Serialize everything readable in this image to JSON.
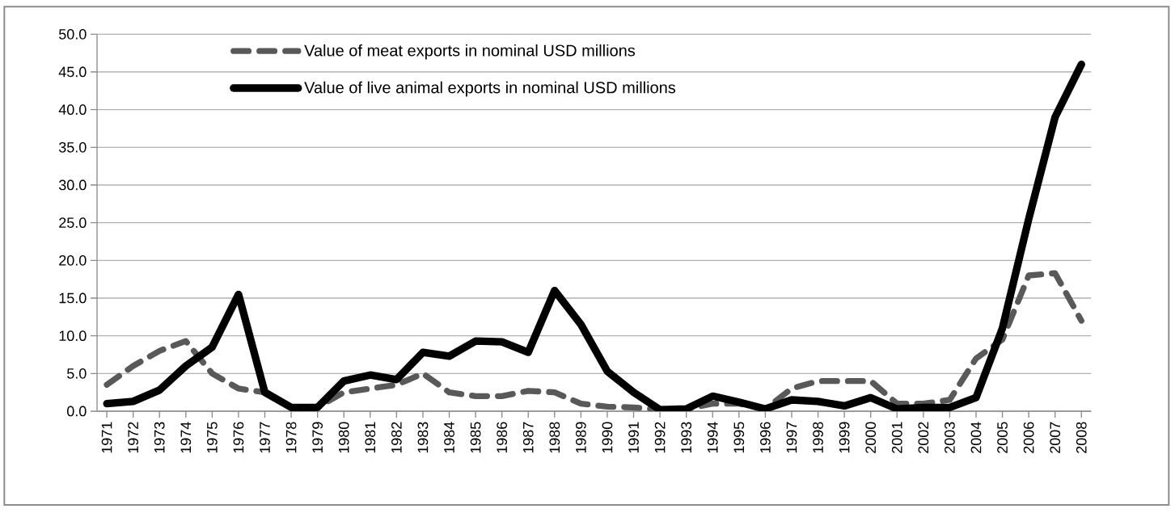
{
  "chart_data": {
    "type": "line",
    "categories": [
      "1971",
      "1972",
      "1973",
      "1974",
      "1975",
      "1976",
      "1977",
      "1978",
      "1979",
      "1980",
      "1981",
      "1982",
      "1983",
      "1984",
      "1985",
      "1986",
      "1987",
      "1988",
      "1989",
      "1990",
      "1991",
      "1992",
      "1993",
      "1994",
      "1995",
      "1996",
      "1997",
      "1998",
      "1999",
      "2000",
      "2001",
      "2002",
      "2003",
      "2004",
      "2005",
      "2006",
      "2007",
      "2008"
    ],
    "series": [
      {
        "name": "Value of meat exports in nominal USD millions",
        "color": "#595959",
        "line_style": "dashed",
        "values": [
          3.5,
          6.0,
          8.0,
          9.3,
          5.0,
          3.0,
          2.5,
          0.5,
          0.5,
          2.5,
          3.0,
          3.5,
          5.0,
          2.5,
          2.0,
          2.0,
          2.7,
          2.5,
          1.0,
          0.6,
          0.5,
          0.2,
          0.3,
          1.0,
          1.0,
          0.3,
          3.0,
          4.0,
          4.0,
          4.0,
          1.0,
          1.0,
          1.5,
          7.0,
          9.5,
          18.0,
          18.3,
          12.0
        ]
      },
      {
        "name": "Value of live animal exports in nominal USD millions",
        "color": "#000000",
        "line_style": "solid",
        "values": [
          1.0,
          1.3,
          2.8,
          6.0,
          8.5,
          15.5,
          2.5,
          0.5,
          0.5,
          4.0,
          4.8,
          4.2,
          7.8,
          7.3,
          9.3,
          9.2,
          7.8,
          16.0,
          11.5,
          5.3,
          2.5,
          0.2,
          0.3,
          2.0,
          1.2,
          0.3,
          1.5,
          1.3,
          0.7,
          1.8,
          0.3,
          0.5,
          0.5,
          1.8,
          11.0,
          25.5,
          39.0,
          46.0
        ]
      }
    ],
    "ylim": [
      0,
      50
    ],
    "yticks": [
      {
        "value": 0,
        "label": "0.0"
      },
      {
        "value": 5,
        "label": "5.0"
      },
      {
        "value": 10,
        "label": "10.0"
      },
      {
        "value": 15,
        "label": "15.0"
      },
      {
        "value": 20,
        "label": "20.0"
      },
      {
        "value": 25,
        "label": "25.0"
      },
      {
        "value": 30,
        "label": "30.0"
      },
      {
        "value": 35,
        "label": "35.0"
      },
      {
        "value": 40,
        "label": "40.0"
      },
      {
        "value": 45,
        "label": "45.0"
      },
      {
        "value": 50,
        "label": "50.0"
      }
    ],
    "grid": "y",
    "legend": "top",
    "marker": "none"
  }
}
